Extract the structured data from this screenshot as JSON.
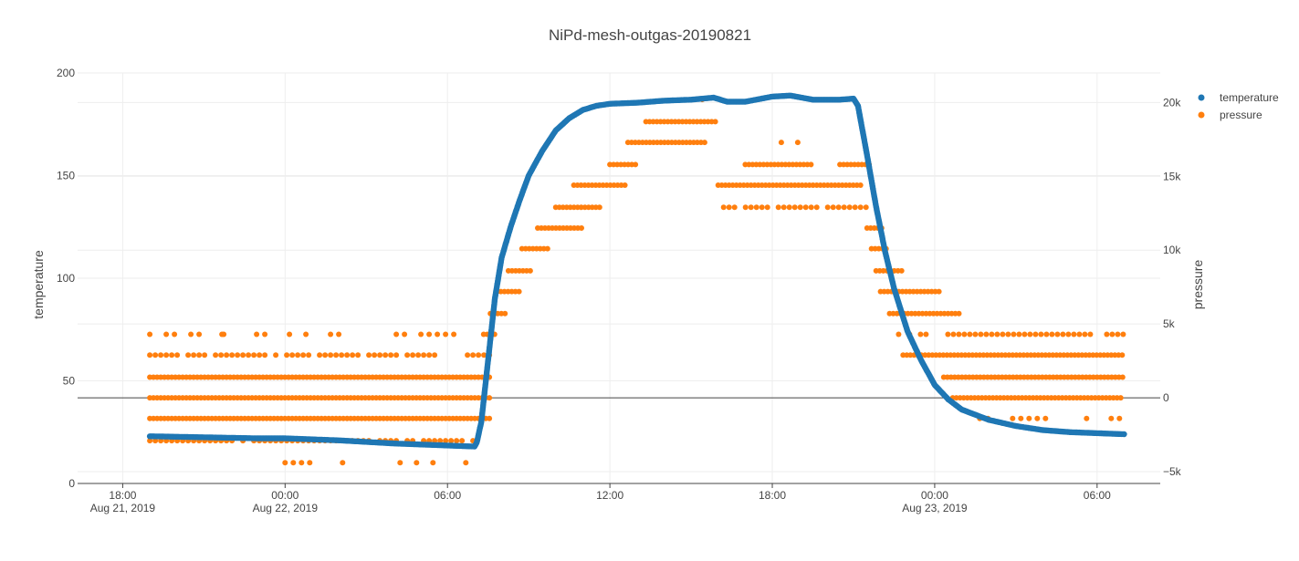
{
  "chart_data": {
    "type": "scatter",
    "title": "NiPd-mesh-outgas-20190821",
    "ylabel": "temperature",
    "y2label": "pressure",
    "xlabel": "",
    "x_range": [
      "2019-08-21 16:20",
      "2019-08-23 08:20"
    ],
    "ylim": [
      0,
      200
    ],
    "y2lim": [
      -5800,
      22000
    ],
    "grid": true,
    "legend_position": "top-right",
    "x_ticks": [
      {
        "value": "2019-08-21 18:00",
        "line1": "18:00",
        "line2": "Aug 21, 2019"
      },
      {
        "value": "2019-08-22 00:00",
        "line1": "00:00",
        "line2": "Aug 22, 2019"
      },
      {
        "value": "2019-08-22 06:00",
        "line1": "06:00",
        "line2": ""
      },
      {
        "value": "2019-08-22 12:00",
        "line1": "12:00",
        "line2": ""
      },
      {
        "value": "2019-08-22 18:00",
        "line1": "18:00",
        "line2": ""
      },
      {
        "value": "2019-08-23 00:00",
        "line1": "00:00",
        "line2": "Aug 23, 2019"
      },
      {
        "value": "2019-08-23 06:00",
        "line1": "06:00",
        "line2": ""
      }
    ],
    "y_ticks": [
      0,
      50,
      100,
      150,
      200
    ],
    "y2_ticks": [
      {
        "value": -5000,
        "label": "−5k"
      },
      {
        "value": 0,
        "label": "0"
      },
      {
        "value": 5000,
        "label": "5k"
      },
      {
        "value": 10000,
        "label": "10k"
      },
      {
        "value": 15000,
        "label": "15k"
      },
      {
        "value": 20000,
        "label": "20k"
      }
    ],
    "series": [
      {
        "name": "temperature",
        "axis": "y",
        "color": "#1f77b4",
        "points": [
          [
            "2019-08-21 19:00",
            23
          ],
          [
            "2019-08-21 21:00",
            22.5
          ],
          [
            "2019-08-21 23:00",
            22
          ],
          [
            "2019-08-22 00:00",
            22
          ],
          [
            "2019-08-22 02:00",
            21
          ],
          [
            "2019-08-22 04:00",
            19.5
          ],
          [
            "2019-08-22 06:00",
            18.5
          ],
          [
            "2019-08-22 07:00",
            18
          ],
          [
            "2019-08-22 07:05",
            20
          ],
          [
            "2019-08-22 07:15",
            30
          ],
          [
            "2019-08-22 07:30",
            60
          ],
          [
            "2019-08-22 07:45",
            90
          ],
          [
            "2019-08-22 08:00",
            110
          ],
          [
            "2019-08-22 08:20",
            125
          ],
          [
            "2019-08-22 08:40",
            138
          ],
          [
            "2019-08-22 09:00",
            150
          ],
          [
            "2019-08-22 09:30",
            162
          ],
          [
            "2019-08-22 10:00",
            172
          ],
          [
            "2019-08-22 10:30",
            178
          ],
          [
            "2019-08-22 11:00",
            182
          ],
          [
            "2019-08-22 11:30",
            184
          ],
          [
            "2019-08-22 12:00",
            185
          ],
          [
            "2019-08-22 13:00",
            185.5
          ],
          [
            "2019-08-22 14:00",
            186.5
          ],
          [
            "2019-08-22 15:00",
            187
          ],
          [
            "2019-08-22 15:50",
            188
          ],
          [
            "2019-08-22 16:20",
            186
          ],
          [
            "2019-08-22 17:00",
            186
          ],
          [
            "2019-08-22 18:00",
            188.5
          ],
          [
            "2019-08-22 18:40",
            189
          ],
          [
            "2019-08-22 19:30",
            187
          ],
          [
            "2019-08-22 20:30",
            187
          ],
          [
            "2019-08-22 21:00",
            187.5
          ],
          [
            "2019-08-22 21:10",
            184
          ],
          [
            "2019-08-22 21:30",
            160
          ],
          [
            "2019-08-22 21:50",
            135
          ],
          [
            "2019-08-22 22:10",
            113
          ],
          [
            "2019-08-22 22:30",
            95
          ],
          [
            "2019-08-22 23:00",
            74
          ],
          [
            "2019-08-22 23:30",
            60
          ],
          [
            "2019-08-23 00:00",
            48
          ],
          [
            "2019-08-23 00:30",
            41
          ],
          [
            "2019-08-23 01:00",
            36
          ],
          [
            "2019-08-23 02:00",
            31
          ],
          [
            "2019-08-23 03:00",
            28
          ],
          [
            "2019-08-23 04:00",
            26
          ],
          [
            "2019-08-23 05:00",
            25
          ],
          [
            "2019-08-23 06:00",
            24.5
          ],
          [
            "2019-08-23 07:00",
            24
          ]
        ]
      },
      {
        "name": "pressure",
        "axis": "y2",
        "color": "#ff7f0e",
        "bands": [
          {
            "y": 4300,
            "from": "2019-08-21 19:00",
            "to": "2019-08-22 07:40",
            "density": "sparse"
          },
          {
            "y": 2900,
            "from": "2019-08-21 19:00",
            "to": "2019-08-22 07:40",
            "density": "medium"
          },
          {
            "y": 1400,
            "from": "2019-08-21 19:00",
            "to": "2019-08-22 07:40",
            "density": "dense"
          },
          {
            "y": 0,
            "from": "2019-08-21 19:00",
            "to": "2019-08-22 07:40",
            "density": "dense"
          },
          {
            "y": -1400,
            "from": "2019-08-21 19:00",
            "to": "2019-08-22 07:40",
            "density": "dense"
          },
          {
            "y": -2900,
            "from": "2019-08-21 19:00",
            "to": "2019-08-22 07:00",
            "density": "medium"
          },
          {
            "y": -4400,
            "from": "2019-08-22 00:00",
            "to": "2019-08-22 07:00",
            "density": "sparse"
          },
          {
            "y": 4300,
            "from": "2019-08-22 07:20",
            "to": "2019-08-22 07:50",
            "density": "dense"
          },
          {
            "y": 5700,
            "from": "2019-08-22 07:35",
            "to": "2019-08-22 08:10",
            "density": "dense"
          },
          {
            "y": 7200,
            "from": "2019-08-22 07:50",
            "to": "2019-08-22 08:45",
            "density": "dense"
          },
          {
            "y": 8600,
            "from": "2019-08-22 08:15",
            "to": "2019-08-22 09:05",
            "density": "dense"
          },
          {
            "y": 10100,
            "from": "2019-08-22 08:45",
            "to": "2019-08-22 09:45",
            "density": "dense"
          },
          {
            "y": 11500,
            "from": "2019-08-22 09:20",
            "to": "2019-08-22 11:00",
            "density": "dense"
          },
          {
            "y": 12900,
            "from": "2019-08-22 10:00",
            "to": "2019-08-22 11:40",
            "density": "dense"
          },
          {
            "y": 14400,
            "from": "2019-08-22 10:40",
            "to": "2019-08-22 12:40",
            "density": "dense"
          },
          {
            "y": 15800,
            "from": "2019-08-22 12:00",
            "to": "2019-08-22 13:00",
            "density": "dense"
          },
          {
            "y": 17300,
            "from": "2019-08-22 12:40",
            "to": "2019-08-22 15:30",
            "density": "dense"
          },
          {
            "y": 18700,
            "from": "2019-08-22 13:20",
            "to": "2019-08-22 16:00",
            "density": "dense"
          },
          {
            "y": 20200,
            "from": "2019-08-22 14:30",
            "to": "2019-08-22 15:30",
            "density": "sparse"
          },
          {
            "y": 17300,
            "from": "2019-08-22 18:20",
            "to": "2019-08-22 19:00",
            "density": "sparse"
          },
          {
            "y": 15800,
            "from": "2019-08-22 17:00",
            "to": "2019-08-22 19:30",
            "density": "dense"
          },
          {
            "y": 14400,
            "from": "2019-08-22 16:00",
            "to": "2019-08-22 21:20",
            "density": "dense"
          },
          {
            "y": 12900,
            "from": "2019-08-22 16:00",
            "to": "2019-08-22 21:30",
            "density": "medium"
          },
          {
            "y": 15800,
            "from": "2019-08-22 20:30",
            "to": "2019-08-22 21:40",
            "density": "dense"
          },
          {
            "y": 11500,
            "from": "2019-08-22 21:30",
            "to": "2019-08-22 22:10",
            "density": "dense"
          },
          {
            "y": 10100,
            "from": "2019-08-22 21:40",
            "to": "2019-08-22 22:20",
            "density": "dense"
          },
          {
            "y": 8600,
            "from": "2019-08-22 21:50",
            "to": "2019-08-22 22:50",
            "density": "dense"
          },
          {
            "y": 7200,
            "from": "2019-08-22 22:00",
            "to": "2019-08-23 00:10",
            "density": "dense"
          },
          {
            "y": 5700,
            "from": "2019-08-22 22:20",
            "to": "2019-08-23 01:00",
            "density": "dense"
          },
          {
            "y": 4300,
            "from": "2019-08-22 22:40",
            "to": "2019-08-23 07:00",
            "density": "medium"
          },
          {
            "y": 2900,
            "from": "2019-08-22 22:50",
            "to": "2019-08-23 07:00",
            "density": "dense"
          },
          {
            "y": 1400,
            "from": "2019-08-23 00:20",
            "to": "2019-08-23 07:00",
            "density": "dense"
          },
          {
            "y": 0,
            "from": "2019-08-23 00:40",
            "to": "2019-08-23 07:00",
            "density": "dense"
          },
          {
            "y": -1400,
            "from": "2019-08-23 01:40",
            "to": "2019-08-23 07:00",
            "density": "sparse"
          }
        ],
        "outliers": [
          [
            "2019-08-21 21:40",
            4300
          ]
        ]
      }
    ]
  }
}
